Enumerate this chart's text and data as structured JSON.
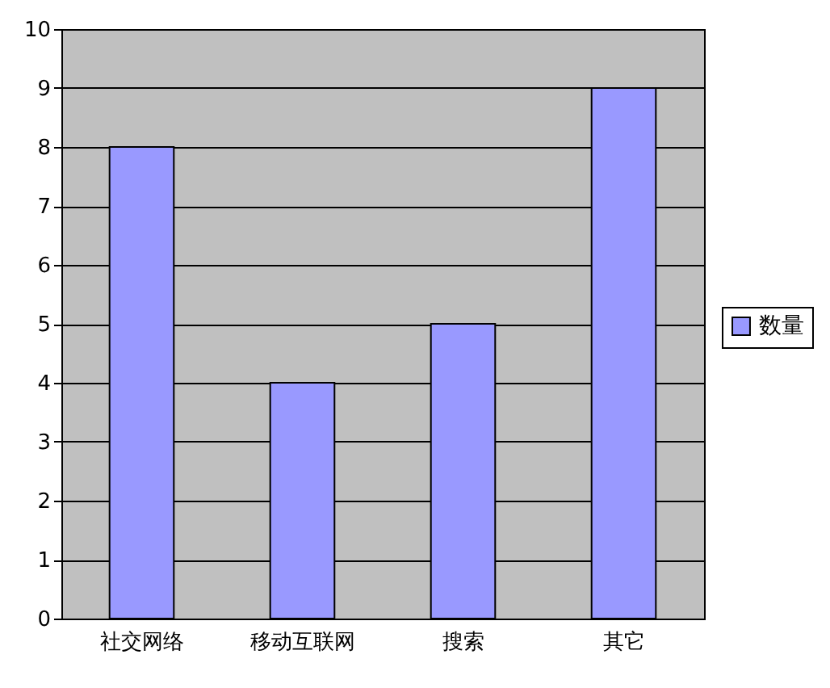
{
  "chart_data": {
    "type": "bar",
    "categories": [
      "社交网络",
      "移动互联网",
      "搜索",
      "其它"
    ],
    "series": [
      {
        "name": "数量",
        "color": "#9999ff",
        "values": [
          8,
          4,
          5,
          9
        ]
      }
    ],
    "ylim": [
      0,
      10
    ],
    "yticks": [
      0,
      1,
      2,
      3,
      4,
      5,
      6,
      7,
      8,
      9,
      10
    ],
    "grid": "y",
    "legend": "right"
  }
}
